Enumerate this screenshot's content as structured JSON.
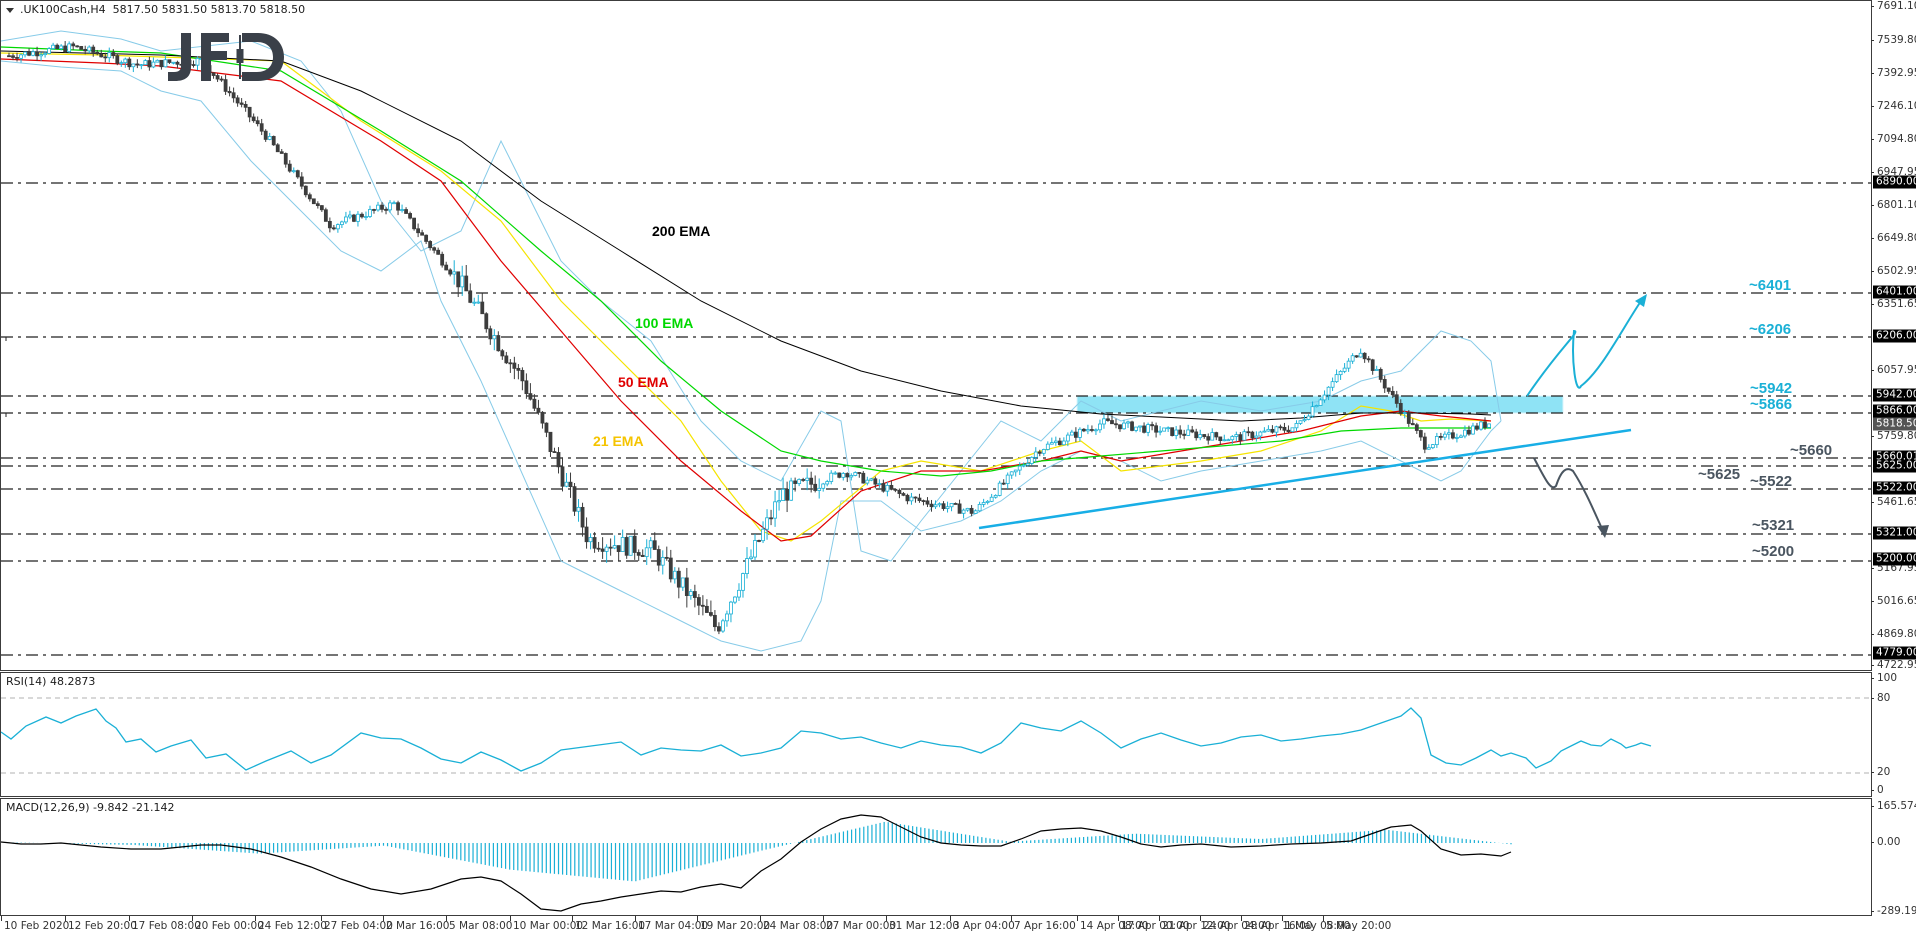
{
  "header": {
    "symbol_title": ".UK100Cash,H4",
    "ohlc": "5817.50 5831.50 5813.70 5818.50",
    "logo": "JFD"
  },
  "colors": {
    "candle_up": "#1ab0d6",
    "candle_down": "#3c3c3c",
    "bollinger": "#87cbe8",
    "ema21": "#f5e400",
    "ema50": "#e00000",
    "ema100": "#00e000",
    "ema200": "#000000",
    "zone": "#8fe3f5",
    "bull_annotation": "#1ab0d6",
    "bear_annotation": "#4a5560",
    "trendline": "#18aee6"
  },
  "annotations": {
    "ema_labels": {
      "ema200": "200 EMA",
      "ema100": "100 EMA",
      "ema50": "50 EMA",
      "ema21": "21 EMA"
    },
    "levels": {
      "l6401": "~6401",
      "l6206": "~6206",
      "l5942": "~5942",
      "l5866": "~5866",
      "l5660": "~5660",
      "l5625": "~5625",
      "l5522": "~5522",
      "l5321": "~5321",
      "l5200": "~5200"
    }
  },
  "price_axis": {
    "ticks": [
      "7691.10",
      "7539.80",
      "7392.95",
      "7246.10",
      "7094.80",
      "6947.95",
      "6801.10",
      "6649.80",
      "6502.95",
      "6351.65",
      "6057.95",
      "5759.80",
      "5461.65",
      "5167.95",
      "5016.65",
      "4869.80",
      "4722.95"
    ],
    "tagged_levels": [
      "6890.00",
      "6401.00",
      "6206.00",
      "5942.00",
      "5866.00",
      "5660.01",
      "5625.00",
      "5522.00",
      "5321.00",
      "5200.00",
      "4779.00"
    ],
    "current_price": "5818.50"
  },
  "rsi": {
    "title": "RSI(14) 48.2873",
    "ticks": [
      "100",
      "80",
      "20",
      "0"
    ]
  },
  "macd": {
    "title": "MACD(12,26,9) -9.842 -21.142",
    "ticks": [
      "165.574",
      "0.00",
      "-289.19"
    ]
  },
  "time_axis": {
    "labels": [
      "10 Feb 2020",
      "12 Feb 20:00",
      "17 Feb 08:00",
      "20 Feb 00:00",
      "24 Feb 12:00",
      "27 Feb 04:00",
      "2 Mar 16:00",
      "5 Mar 08:00",
      "10 Mar 00:00",
      "12 Mar 16:00",
      "17 Mar 04:00",
      "19 Mar 20:00",
      "24 Mar 08:00",
      "27 Mar 00:00",
      "31 Mar 12:00",
      "3 Apr 04:00",
      "7 Apr 16:00",
      "14 Apr 08:00",
      "17 Apr 00:00",
      "21 Apr 12:00",
      "24 Apr 04:00",
      "28 Apr 16:00",
      "1 May 08:00",
      "5 May 20:00"
    ]
  },
  "chart_data": [
    {
      "type": "candlestick",
      "title": ".UK100Cash,H4",
      "ylabel": "Price",
      "ylim": [
        4722.95,
        7691.1
      ],
      "x_ticks": [
        "10 Feb 2020",
        "12 Feb 20:00",
        "17 Feb 08:00",
        "20 Feb 00:00",
        "24 Feb 12:00",
        "27 Feb 04:00",
        "2 Mar 16:00",
        "5 Mar 08:00",
        "10 Mar 00:00",
        "12 Mar 16:00",
        "17 Mar 04:00",
        "19 Mar 20:00",
        "24 Mar 08:00",
        "27 Mar 00:00",
        "31 Mar 12:00",
        "3 Apr 04:00",
        "7 Apr 16:00",
        "14 Apr 08:00",
        "17 Apr 00:00",
        "21 Apr 12:00",
        "24 Apr 04:00",
        "28 Apr 16:00",
        "1 May 08:00",
        "5 May 20:00"
      ],
      "last_bar": {
        "open": 5817.5,
        "high": 5831.5,
        "low": 5813.7,
        "close": 5818.5
      },
      "approx_close_path": [
        {
          "x": "10 Feb 2020",
          "y": 7460
        },
        {
          "x": "12 Feb 20:00",
          "y": 7500
        },
        {
          "x": "17 Feb 08:00",
          "y": 7420
        },
        {
          "x": "20 Feb 00:00",
          "y": 7440
        },
        {
          "x": "24 Feb 12:00",
          "y": 7100
        },
        {
          "x": "27 Feb 04:00",
          "y": 6700
        },
        {
          "x": "2 Mar 16:00",
          "y": 6800
        },
        {
          "x": "5 Mar 08:00",
          "y": 6450
        },
        {
          "x": "10 Mar 00:00",
          "y": 6000
        },
        {
          "x": "12 Mar 16:00",
          "y": 5300
        },
        {
          "x": "17 Mar 04:00",
          "y": 5250
        },
        {
          "x": "19 Mar 20:00",
          "y": 4900
        },
        {
          "x": "24 Mar 08:00",
          "y": 5500
        },
        {
          "x": "27 Mar 00:00",
          "y": 5600
        },
        {
          "x": "31 Mar 12:00",
          "y": 5480
        },
        {
          "x": "3 Apr 04:00",
          "y": 5420
        },
        {
          "x": "7 Apr 16:00",
          "y": 5700
        },
        {
          "x": "14 Apr 08:00",
          "y": 5820
        },
        {
          "x": "17 Apr 00:00",
          "y": 5780
        },
        {
          "x": "21 Apr 12:00",
          "y": 5750
        },
        {
          "x": "24 Apr 04:00",
          "y": 5800
        },
        {
          "x": "28 Apr 16:00",
          "y": 6150
        },
        {
          "x": "1 May 08:00",
          "y": 5720
        },
        {
          "x": "5 May 20:00",
          "y": 5818.5
        }
      ],
      "overlays": [
        "Bollinger Bands",
        "21 EMA",
        "50 EMA",
        "100 EMA",
        "200 EMA"
      ],
      "horizontal_levels": [
        6890,
        6401,
        6206,
        5942,
        5866,
        5660,
        5625,
        5522,
        5321,
        5200,
        4779
      ],
      "resistance_zone": [
        5866,
        5942
      ],
      "uptrend_line": {
        "from": {
          "x": "3 Apr 04:00",
          "y": 5370
        },
        "to": {
          "x": "5 May 20:00+",
          "y": 5800
        }
      },
      "scenario_arrows": [
        {
          "direction": "up",
          "path_levels": [
            5942,
            6206,
            6000,
            6401
          ]
        },
        {
          "direction": "down",
          "path_levels": [
            5660,
            5522,
            5625,
            5321
          ]
        }
      ],
      "level_labels": [
        "~6401",
        "~6206",
        "~5942",
        "~5866",
        "~5660",
        "~5625",
        "~5522",
        "~5321",
        "~5200"
      ]
    },
    {
      "type": "line",
      "title": "RSI(14) 48.2873",
      "ylim": [
        0,
        100
      ],
      "reference_lines": [
        80,
        20
      ],
      "approx_values": [
        {
          "x": "10 Feb 2020",
          "y": 58
        },
        {
          "x": "12 Feb 20:00",
          "y": 68
        },
        {
          "x": "17 Feb 08:00",
          "y": 42
        },
        {
          "x": "20 Feb 00:00",
          "y": 50
        },
        {
          "x": "24 Feb 12:00",
          "y": 22
        },
        {
          "x": "27 Feb 04:00",
          "y": 18
        },
        {
          "x": "2 Mar 16:00",
          "y": 45
        },
        {
          "x": "5 Mar 08:00",
          "y": 38
        },
        {
          "x": "10 Mar 00:00",
          "y": 30
        },
        {
          "x": "12 Mar 16:00",
          "y": 38
        },
        {
          "x": "17 Mar 04:00",
          "y": 40
        },
        {
          "x": "19 Mar 20:00",
          "y": 38
        },
        {
          "x": "24 Mar 08:00",
          "y": 58
        },
        {
          "x": "27 Mar 00:00",
          "y": 60
        },
        {
          "x": "31 Mar 12:00",
          "y": 45
        },
        {
          "x": "3 Apr 04:00",
          "y": 40
        },
        {
          "x": "7 Apr 16:00",
          "y": 62
        },
        {
          "x": "14 Apr 08:00",
          "y": 45
        },
        {
          "x": "17 Apr 00:00",
          "y": 55
        },
        {
          "x": "21 Apr 12:00",
          "y": 50
        },
        {
          "x": "24 Apr 04:00",
          "y": 58
        },
        {
          "x": "28 Apr 16:00",
          "y": 80
        },
        {
          "x": "1 May 08:00",
          "y": 28
        },
        {
          "x": "5 May 20:00",
          "y": 48.29
        }
      ]
    },
    {
      "type": "bar+line",
      "title": "MACD(12,26,9) -9.842 -21.142",
      "ylim": [
        -289.19,
        165.574
      ],
      "series": [
        {
          "name": "MACD histogram",
          "approx_values": [
            {
              "x": "10 Feb 2020",
              "y": 5
            },
            {
              "x": "17 Feb 08:00",
              "y": -15
            },
            {
              "x": "24 Feb 12:00",
              "y": -80
            },
            {
              "x": "5 Mar 08:00",
              "y": -20
            },
            {
              "x": "10 Mar 00:00",
              "y": -200
            },
            {
              "x": "12 Mar 16:00",
              "y": -289
            },
            {
              "x": "19 Mar 20:00",
              "y": -60
            },
            {
              "x": "27 Mar 00:00",
              "y": 160
            },
            {
              "x": "3 Apr 04:00",
              "y": 10
            },
            {
              "x": "14 Apr 08:00",
              "y": 70
            },
            {
              "x": "24 Apr 04:00",
              "y": 30
            },
            {
              "x": "28 Apr 16:00",
              "y": 100
            },
            {
              "x": "5 May 20:00",
              "y": -9.842
            }
          ]
        },
        {
          "name": "Signal",
          "approx_values": [
            {
              "x": "10 Feb 2020",
              "y": 10
            },
            {
              "x": "20 Feb 00:00",
              "y": 5
            },
            {
              "x": "2 Mar 16:00",
              "y": -50
            },
            {
              "x": "5 Mar 08:00",
              "y": 30
            },
            {
              "x": "12 Mar 16:00",
              "y": -260
            },
            {
              "x": "24 Mar 08:00",
              "y": 60
            },
            {
              "x": "27 Mar 00:00",
              "y": 160
            },
            {
              "x": "3 Apr 04:00",
              "y": 0
            },
            {
              "x": "14 Apr 08:00",
              "y": 60
            },
            {
              "x": "28 Apr 16:00",
              "y": 90
            },
            {
              "x": "5 May 20:00",
              "y": -21.142
            }
          ]
        }
      ],
      "reference_lines": [
        0
      ]
    }
  ]
}
